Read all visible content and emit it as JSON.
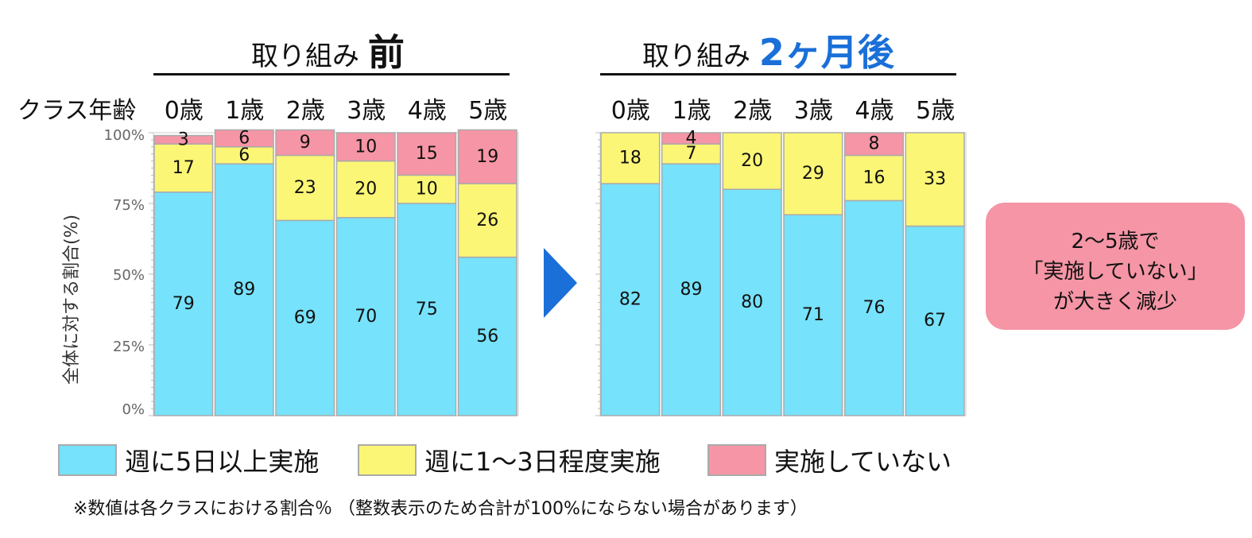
{
  "title_before": {
    "prefix": "取り組み",
    "highlight": "前"
  },
  "title_after": {
    "prefix": "取り組み",
    "highlight": "2ヶ月後"
  },
  "row_label": "クラス年齢",
  "ylabel": "全体に対する割合(%)",
  "yticks": [
    "100%",
    "75%",
    "50%",
    "25%",
    "0%"
  ],
  "callout": {
    "lines": [
      "2〜5歳で",
      "「実施していない」",
      "が大きく減少"
    ]
  },
  "legend": [
    {
      "label": "週に5日以上実施",
      "color": "#76e2fb"
    },
    {
      "label": "週に1〜3日程度実施",
      "color": "#fbf675"
    },
    {
      "label": "実施していない",
      "color": "#f595a5"
    }
  ],
  "note": "※数値は各クラスにおける割合％ （整数表示のため合計が100%にならない場合があります）",
  "colors": {
    "accent_blue": "#1a6fd8",
    "five_plus": "#76e2fb",
    "one_three": "#fbf675",
    "none": "#f595a5"
  },
  "chart_data": [
    {
      "type": "bar",
      "stacked": true,
      "title": "取り組み 前",
      "categories": [
        "0歳",
        "1歳",
        "2歳",
        "3歳",
        "4歳",
        "5歳"
      ],
      "series": [
        {
          "name": "週に5日以上実施",
          "values": [
            79,
            89,
            69,
            70,
            75,
            56
          ]
        },
        {
          "name": "週に1〜3日程度実施",
          "values": [
            17,
            6,
            23,
            20,
            10,
            26
          ]
        },
        {
          "name": "実施していない",
          "values": [
            3,
            6,
            9,
            10,
            15,
            19
          ]
        }
      ],
      "ylim": [
        0,
        100
      ]
    },
    {
      "type": "bar",
      "stacked": true,
      "title": "取り組み 2ヶ月後",
      "categories": [
        "0歳",
        "1歳",
        "2歳",
        "3歳",
        "4歳",
        "5歳"
      ],
      "series": [
        {
          "name": "週に5日以上実施",
          "values": [
            82,
            89,
            80,
            71,
            76,
            67
          ]
        },
        {
          "name": "週に1〜3日程度実施",
          "values": [
            18,
            7,
            20,
            29,
            16,
            33
          ]
        },
        {
          "name": "実施していない",
          "values": [
            0,
            4,
            0,
            0,
            8,
            0
          ]
        }
      ],
      "ylim": [
        0,
        100
      ]
    }
  ]
}
